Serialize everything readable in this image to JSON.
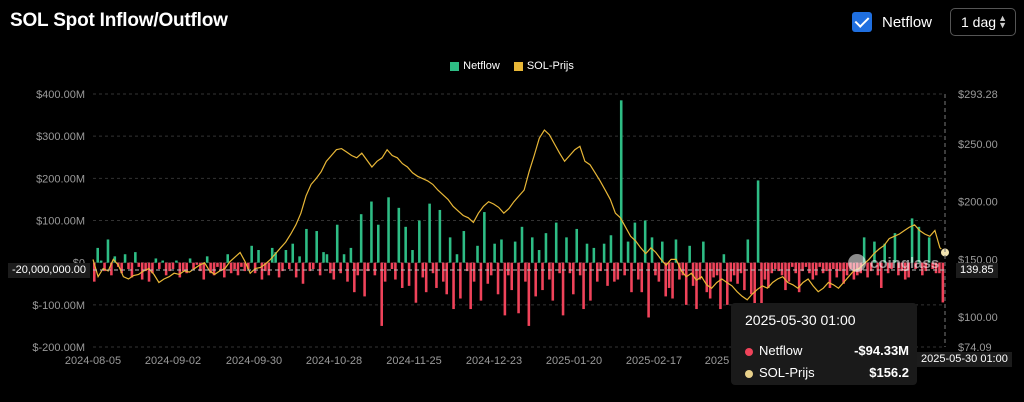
{
  "header": {
    "title": "SOL Spot Inflow/Outflow",
    "netflow_label": "Netflow",
    "interval": "1 dag"
  },
  "watermark": "coinglass",
  "colors": {
    "netflow_pos": "#2ebd85",
    "netflow_neg": "#f0435a",
    "price": "#e8b737",
    "background": "#000000"
  },
  "crosshair": {
    "left_label": "-20,000,000.00",
    "right_label": "139.85",
    "x_label": "2025-05-30 01:00"
  },
  "tooltip": {
    "date": "2025-05-30 01:00",
    "netflow_label": "Netflow",
    "netflow_value": "-$94.33M",
    "price_label": "SOL-Prijs",
    "price_value": "$156.2"
  },
  "chart_data": {
    "type": "bar",
    "title": "SOL Spot Inflow/Outflow",
    "legend": [
      "Netflow",
      "SOL-Prijs"
    ],
    "legend_position": "top-center",
    "grid": true,
    "x_ticks": [
      "2024-08-05",
      "2024-09-02",
      "2024-09-30",
      "2024-10-28",
      "2024-11-25",
      "2024-12-23",
      "2025-01-20",
      "2025-02-17",
      "2025"
    ],
    "x_range": [
      "2024-08-05",
      "2025-05-30"
    ],
    "y_left": {
      "ticks": [
        "$400.00M",
        "$300.00M",
        "$200.00M",
        "$100.00M",
        "$0",
        "$-100.00M",
        "$-200.00M"
      ],
      "range": [
        -200,
        400
      ],
      "unit": "M USD"
    },
    "y_right": {
      "ticks": [
        "$293.28",
        "$250.00",
        "$200.00",
        "$150.00",
        "$100.00",
        "$74.09"
      ],
      "range": [
        74.09,
        293.28
      ]
    },
    "series": [
      {
        "name": "Netflow",
        "type": "bar",
        "unit": "M USD",
        "values": [
          -45,
          35,
          5,
          -20,
          55,
          -30,
          15,
          -10,
          -25,
          20,
          -15,
          -35,
          25,
          -10,
          -40,
          -20,
          -45,
          -25,
          10,
          -15,
          5,
          -30,
          -20,
          -15,
          5,
          -35,
          -20,
          -25,
          10,
          -15,
          -5,
          -20,
          -40,
          15,
          -25,
          -30,
          -10,
          -20,
          -35,
          20,
          -25,
          -15,
          -30,
          -10,
          -20,
          -15,
          40,
          -25,
          30,
          -40,
          -20,
          -30,
          35,
          25,
          -35,
          -20,
          30,
          -15,
          45,
          -35,
          15,
          -50,
          80,
          -20,
          -15,
          75,
          -30,
          25,
          20,
          -25,
          -40,
          90,
          -25,
          20,
          -45,
          35,
          -70,
          -30,
          115,
          -80,
          -20,
          145,
          -30,
          90,
          -150,
          -45,
          155,
          -15,
          -40,
          130,
          -60,
          85,
          -55,
          30,
          -95,
          100,
          -35,
          -70,
          140,
          -25,
          -60,
          125,
          -45,
          -75,
          60,
          -110,
          20,
          -85,
          75,
          -20,
          -110,
          -45,
          40,
          -90,
          120,
          -50,
          -30,
          45,
          -75,
          55,
          -125,
          -30,
          -65,
          50,
          -120,
          85,
          -45,
          -150,
          60,
          -80,
          30,
          -65,
          70,
          -40,
          -90,
          95,
          -25,
          -125,
          60,
          -25,
          -75,
          80,
          -30,
          -110,
          45,
          -90,
          35,
          -45,
          -20,
          45,
          -55,
          65,
          -45,
          -40,
          385,
          -30,
          50,
          -70,
          95,
          -40,
          -70,
          100,
          -130,
          60,
          -30,
          -45,
          50,
          -80,
          -60,
          -85,
          55,
          -40,
          -30,
          -100,
          40,
          -55,
          -110,
          -40,
          50,
          -70,
          -85,
          -35,
          -30,
          -110,
          20,
          -100,
          -45,
          -30,
          -50,
          -25,
          -65,
          55,
          -75,
          -150,
          195,
          -160,
          -40,
          -60,
          -25,
          -15,
          -20,
          -30,
          -65,
          -45,
          -10,
          -25,
          -70,
          -20,
          -10,
          -25,
          -40,
          -30,
          -10,
          -25,
          -20,
          -60,
          -15,
          -35,
          -20,
          -50,
          -30,
          -15,
          -40,
          -30,
          -25,
          60,
          -35,
          -20,
          50,
          -30,
          -60,
          45,
          -25,
          -15,
          70,
          -30,
          -20,
          -40,
          -35,
          105,
          -15,
          85,
          -30,
          -20,
          60,
          -15,
          -25,
          -25,
          -94.33
        ]
      },
      {
        "name": "SOL-Prijs",
        "type": "line",
        "unit": "USD",
        "values": [
          150,
          135,
          142,
          140,
          150,
          145,
          135,
          133,
          136,
          137,
          140,
          142,
          137,
          130,
          133,
          135,
          138,
          137,
          140,
          139,
          142,
          145,
          147,
          140,
          137,
          140,
          142,
          148,
          152,
          156,
          148,
          138,
          142,
          143,
          146,
          150,
          155,
          160,
          165,
          172,
          180,
          190,
          205,
          215,
          220,
          226,
          235,
          240,
          245,
          246,
          243,
          240,
          238,
          242,
          236,
          230,
          235,
          238,
          245,
          240,
          238,
          233,
          230,
          225,
          222,
          220,
          218,
          215,
          210,
          206,
          202,
          196,
          192,
          188,
          186,
          182,
          190,
          196,
          200,
          198,
          195,
          190,
          194,
          200,
          205,
          210,
          226,
          240,
          255,
          262,
          258,
          250,
          242,
          235,
          240,
          245,
          248,
          235,
          232,
          225,
          218,
          210,
          202,
          190,
          186,
          178,
          170,
          166,
          160,
          155,
          160,
          156,
          150,
          145,
          150,
          150,
          140,
          135,
          138,
          132,
          135,
          128,
          125,
          130,
          133,
          130,
          127,
          122,
          118,
          115,
          120,
          124,
          127,
          125,
          130,
          133,
          135,
          130,
          128,
          125,
          130,
          133,
          127,
          122,
          125,
          130,
          128,
          125,
          130,
          135,
          140,
          142,
          146,
          150,
          155,
          159,
          162,
          168,
          170,
          172,
          175,
          178,
          180,
          175,
          172,
          170,
          175,
          160,
          156
        ]
      }
    ]
  }
}
